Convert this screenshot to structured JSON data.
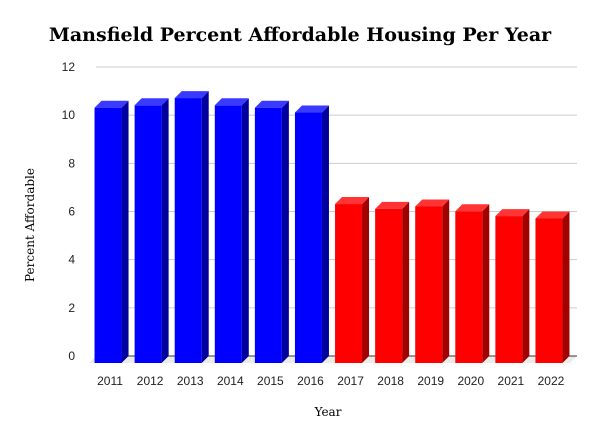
{
  "chart_data": {
    "type": "bar",
    "style": "3d",
    "title": "Mansfield Percent Affordable Housing Per Year",
    "xlabel": "Year",
    "ylabel": "Percent Affordable",
    "ylim": [
      0,
      12
    ],
    "yticks": [
      0,
      2,
      4,
      6,
      8,
      10,
      12
    ],
    "grid": true,
    "legend": "none",
    "categories": [
      "2011",
      "2012",
      "2013",
      "2014",
      "2015",
      "2016",
      "2017",
      "2018",
      "2019",
      "2020",
      "2021",
      "2022"
    ],
    "values": [
      10.6,
      10.7,
      11.0,
      10.7,
      10.6,
      10.4,
      6.6,
      6.4,
      6.5,
      6.3,
      6.1,
      6.0
    ],
    "bar_colors": [
      "blue",
      "blue",
      "blue",
      "blue",
      "blue",
      "blue",
      "red",
      "red",
      "red",
      "red",
      "red",
      "red"
    ],
    "palette": {
      "blue": {
        "front": "#0000ff",
        "top": "#3a3aff",
        "side": "#00009e"
      },
      "red": {
        "front": "#ff0000",
        "top": "#ff3434",
        "side": "#a30000"
      }
    }
  }
}
